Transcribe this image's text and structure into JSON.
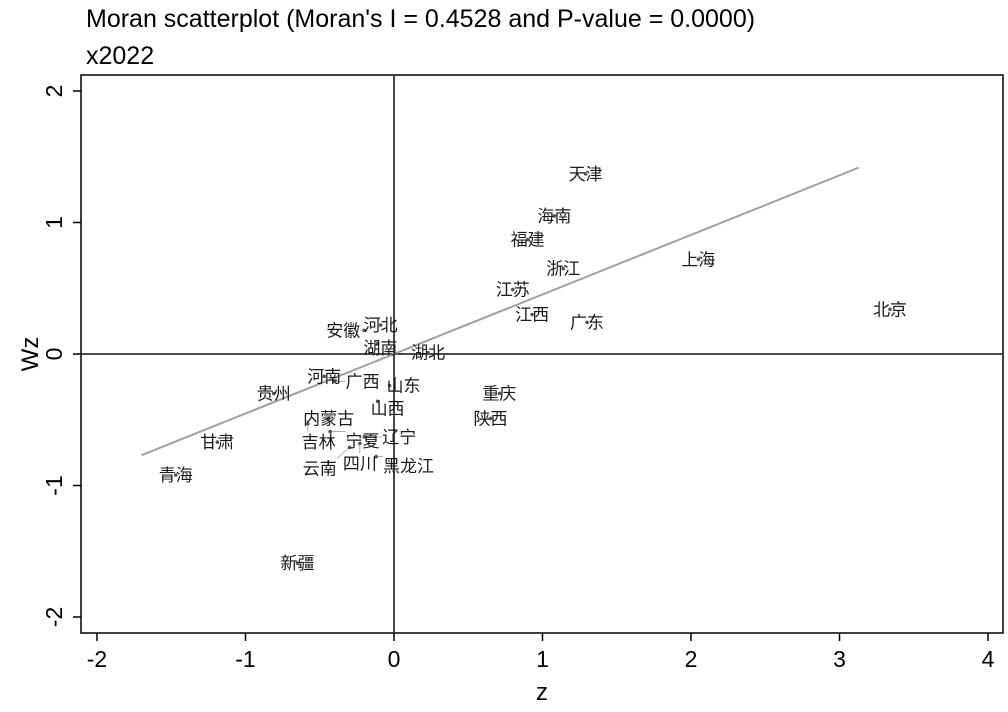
{
  "chart_data": {
    "type": "scatter",
    "title": "Moran scatterplot (Moran's I = 0.4528 and P-value = 0.0000)",
    "subtitle": "x2022",
    "xlabel": "z",
    "ylabel": "Wz",
    "xlim": [
      -2.05,
      4.05
    ],
    "ylim": [
      -2.2,
      2.1
    ],
    "xticks": [
      -2,
      -1,
      0,
      1,
      2,
      3,
      4
    ],
    "yticks": [
      -2,
      -1,
      0,
      1,
      2
    ],
    "grid": false,
    "fit_line": {
      "slope": 0.4528,
      "x_range": [
        -1.7,
        3.13
      ],
      "color": "#a0a0a0"
    },
    "points": [
      {
        "label": "北京",
        "x": 3.34,
        "y": 0.34
      },
      {
        "label": "天津",
        "x": 1.29,
        "y": 1.37
      },
      {
        "label": "海南",
        "x": 1.08,
        "y": 1.05
      },
      {
        "label": "福建",
        "x": 0.9,
        "y": 0.87
      },
      {
        "label": "浙江",
        "x": 1.14,
        "y": 0.65
      },
      {
        "label": "上海",
        "x": 2.05,
        "y": 0.72
      },
      {
        "label": "江苏",
        "x": 0.8,
        "y": 0.49
      },
      {
        "label": "江西",
        "x": 0.93,
        "y": 0.3
      },
      {
        "label": "广东",
        "x": 1.3,
        "y": 0.24
      },
      {
        "label": "河北",
        "x": -0.09,
        "y": 0.22
      },
      {
        "label": "安徽",
        "x": -0.2,
        "y": 0.18
      },
      {
        "label": "湖南",
        "x": -0.11,
        "y": 0.08
      },
      {
        "label": "湖北",
        "x": 0.23,
        "y": 0.01
      },
      {
        "label": "河南",
        "x": -0.47,
        "y": -0.17
      },
      {
        "label": "广西",
        "x": -0.4,
        "y": -0.21
      },
      {
        "label": "贵州",
        "x": -0.81,
        "y": -0.3
      },
      {
        "label": "山东",
        "x": -0.03,
        "y": -0.24
      },
      {
        "label": "山西",
        "x": -0.11,
        "y": -0.36
      },
      {
        "label": "重庆",
        "x": 0.71,
        "y": -0.3
      },
      {
        "label": "陕西",
        "x": 0.65,
        "y": -0.49
      },
      {
        "label": "内蒙古",
        "x": -0.44,
        "y": -0.49
      },
      {
        "label": "吉林",
        "x": -0.58,
        "y": -0.53
      },
      {
        "label": "宁夏",
        "x": -0.43,
        "y": -0.59
      },
      {
        "label": "辽宁",
        "x": -0.2,
        "y": -0.63
      },
      {
        "label": "四川",
        "x": -0.23,
        "y": -0.68
      },
      {
        "label": "云南",
        "x": -0.3,
        "y": -0.71
      },
      {
        "label": "黑龙江",
        "x": -0.12,
        "y": -0.78
      },
      {
        "label": "甘肃",
        "x": -1.19,
        "y": -0.67
      },
      {
        "label": "青海",
        "x": -1.47,
        "y": -0.92
      },
      {
        "label": "新疆",
        "x": -0.65,
        "y": -1.59
      }
    ]
  }
}
